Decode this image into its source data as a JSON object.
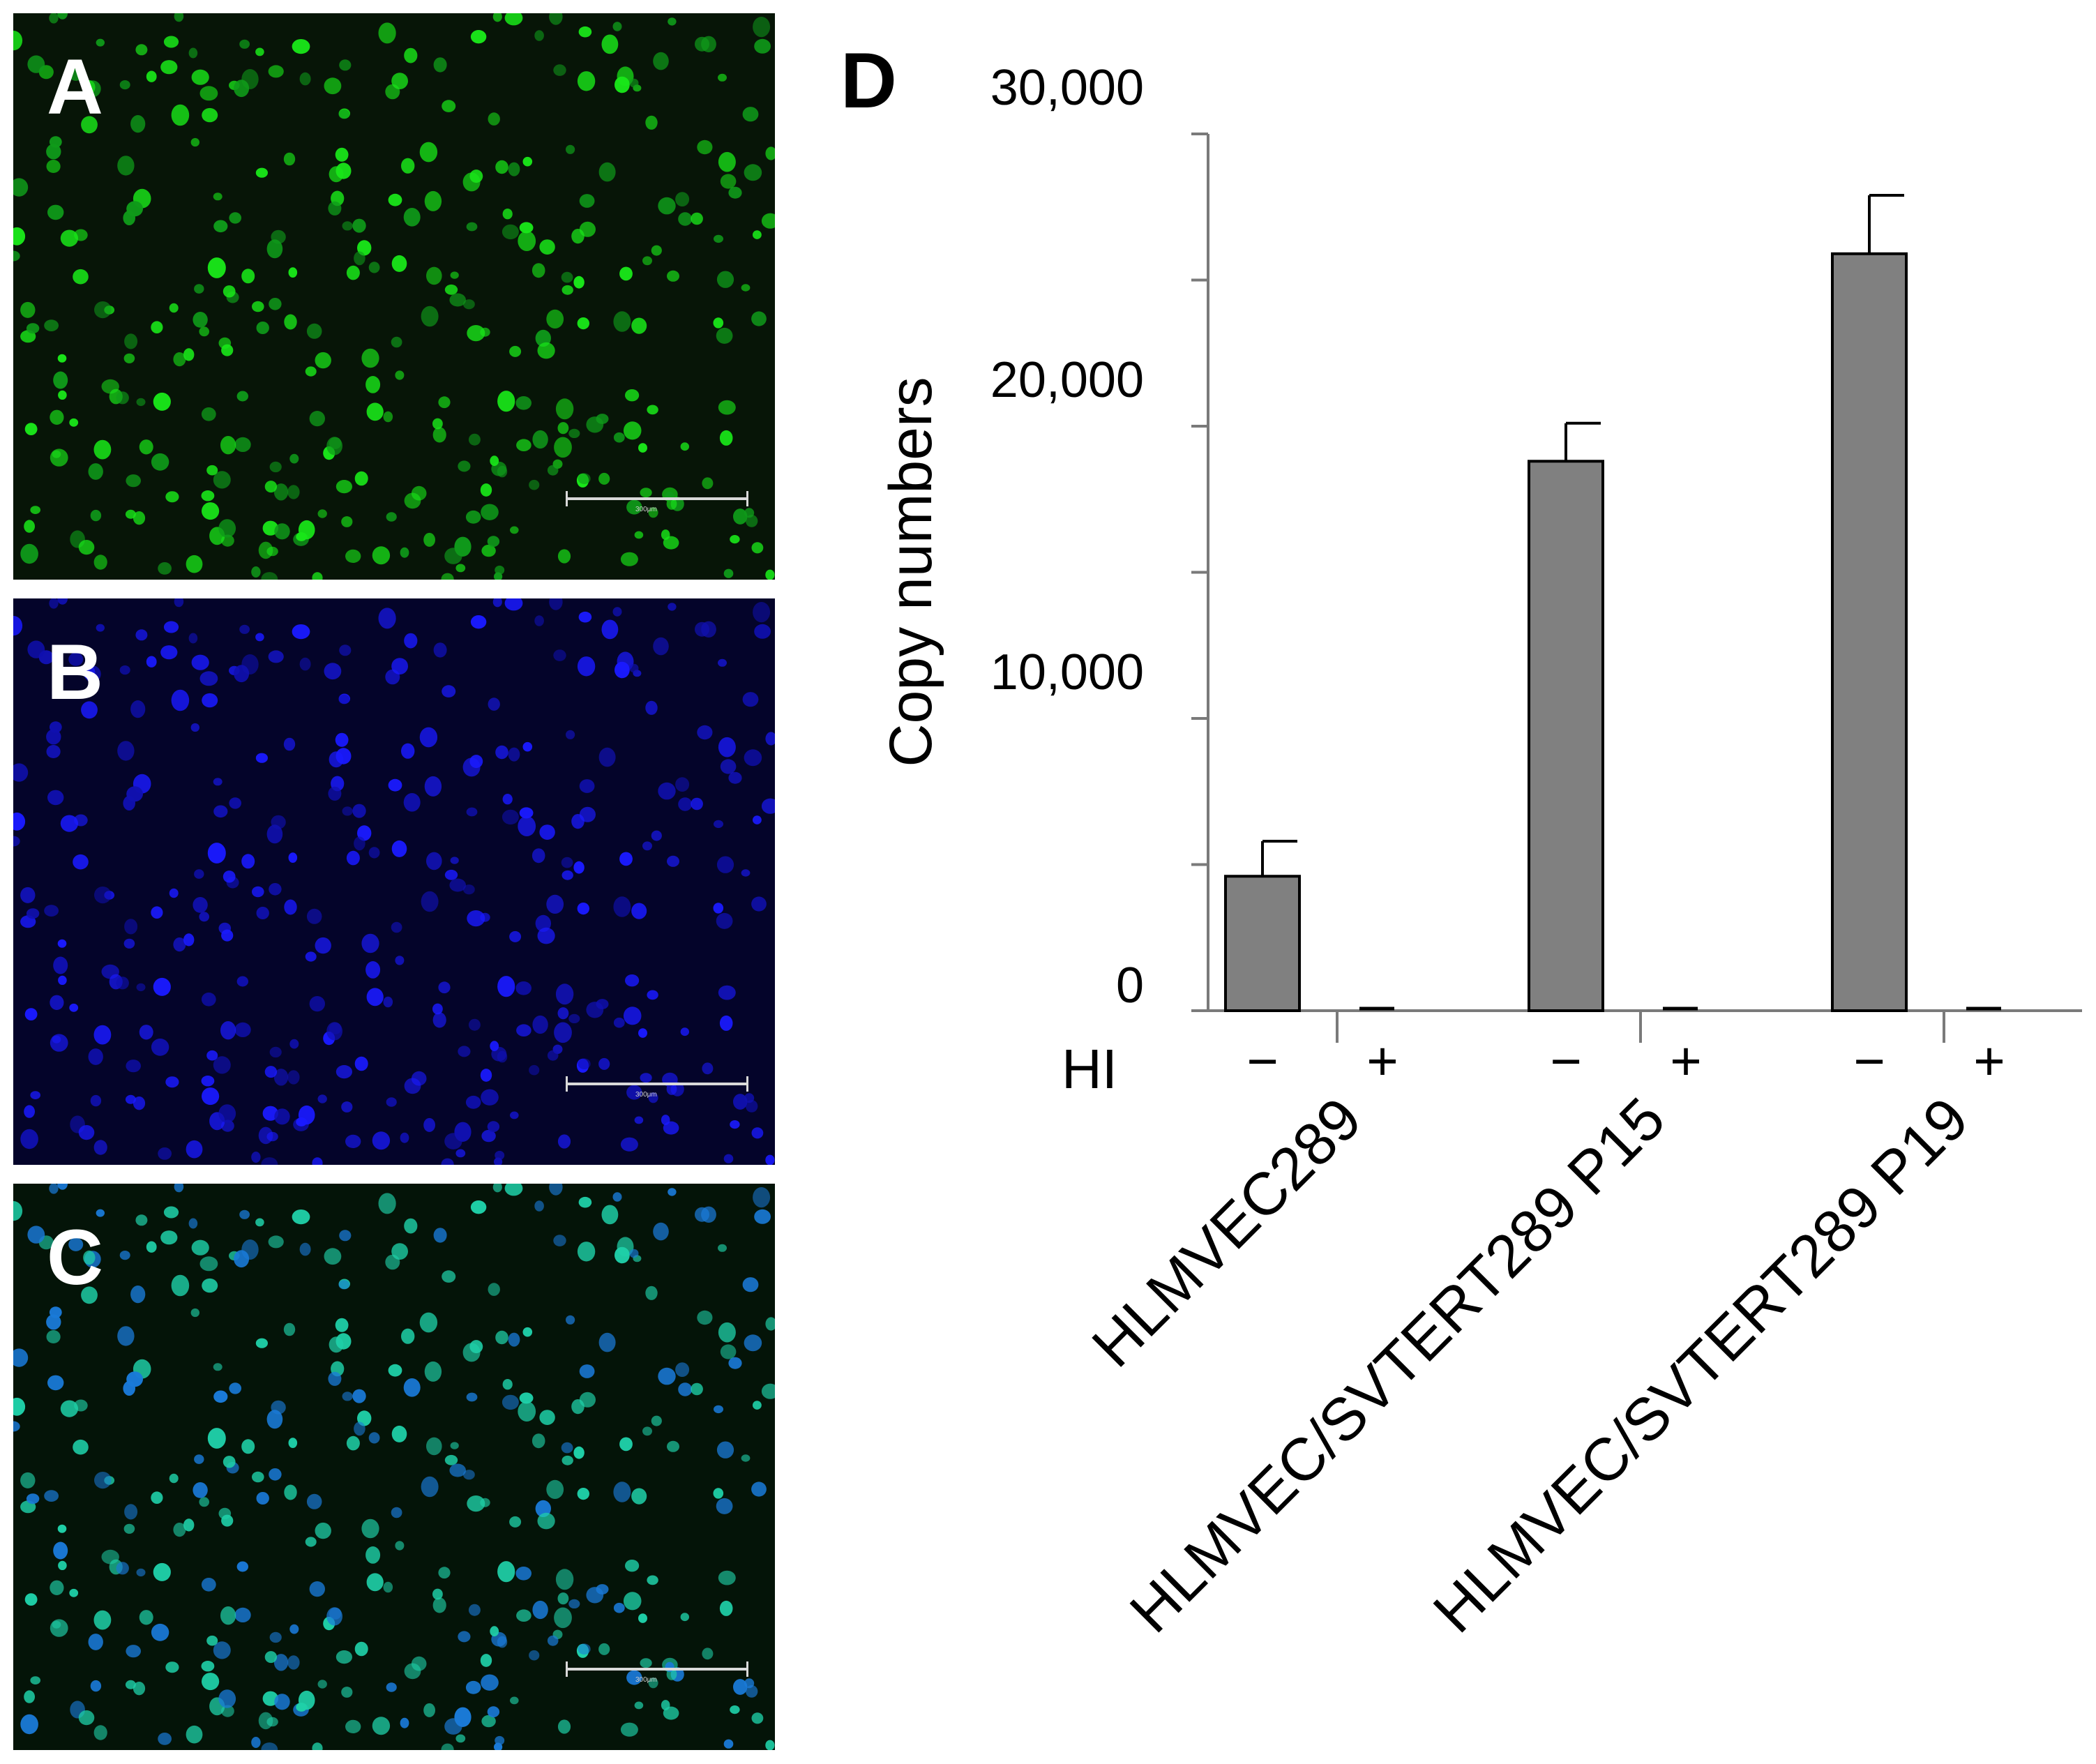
{
  "panels": [
    {
      "letter": "A",
      "scale_label": "300μm",
      "colors": {
        "bg": "#071507",
        "cell": "#19e619",
        "cell_dim": "#0f9a1a"
      }
    },
    {
      "letter": "B",
      "scale_label": "300μm",
      "colors": {
        "bg": "#04042a",
        "cell": "#1a1aff",
        "cell_dim": "#1010b0"
      }
    },
    {
      "letter": "C",
      "scale_label": "300μm",
      "colors": {
        "bg": "#041408",
        "cell": "#1fd0a8",
        "cell_dim": "#1a7ad8"
      }
    }
  ],
  "chart_data": {
    "panel_letter": "D",
    "type": "bar",
    "ylabel": "Copy numbers",
    "ylim": [
      0,
      30000
    ],
    "yticks": [
      0,
      10000,
      20000,
      30000
    ],
    "ytick_labels": [
      "0",
      "10,000",
      "20,000",
      "30,000"
    ],
    "row_label": "HI",
    "groups": [
      {
        "name": "HLMVEC289",
        "bars": [
          {
            "hi": "−",
            "value": 4600,
            "error": 1200
          },
          {
            "hi": "+",
            "value": 50,
            "error": 0
          }
        ]
      },
      {
        "name": "HLMVEC/SVTERT289 P15",
        "bars": [
          {
            "hi": "−",
            "value": 18800,
            "error": 1300
          },
          {
            "hi": "+",
            "value": 60,
            "error": 0
          }
        ]
      },
      {
        "name": "HLMVEC/SVTERT289 P19",
        "bars": [
          {
            "hi": "−",
            "value": 25900,
            "error": 2000
          },
          {
            "hi": "+",
            "value": 50,
            "error": 0
          }
        ]
      }
    ],
    "bar_color": "#808080",
    "grid": false,
    "legend": "none"
  }
}
